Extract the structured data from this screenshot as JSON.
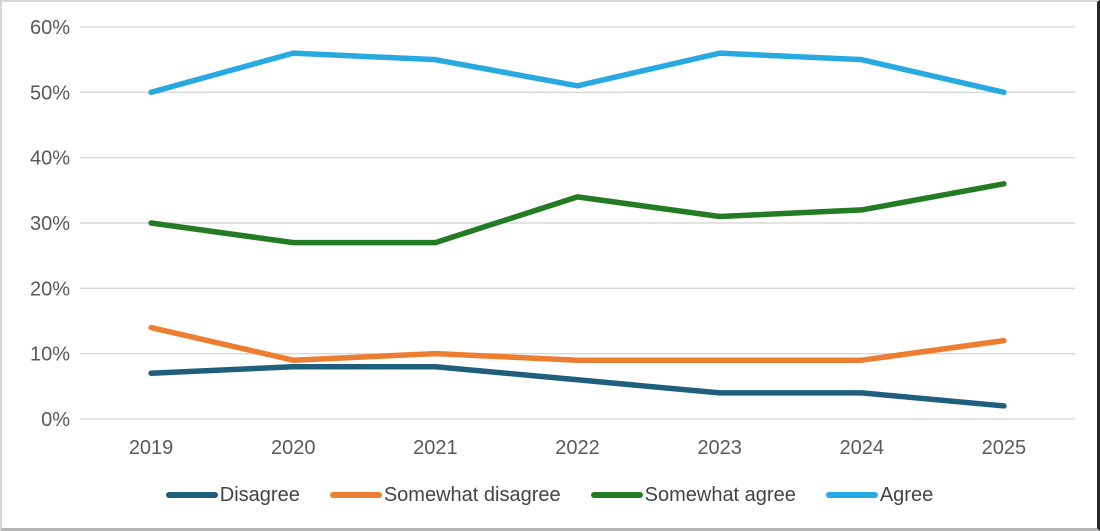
{
  "chart_data": {
    "type": "line",
    "title": "",
    "xlabel": "",
    "ylabel": "",
    "categories": [
      "2019",
      "2020",
      "2021",
      "2022",
      "2023",
      "2024",
      "2025"
    ],
    "series": [
      {
        "name": "Disagree",
        "color": "#205E7E",
        "values": [
          7,
          8,
          8,
          6,
          4,
          4,
          2
        ]
      },
      {
        "name": "Somewhat disagree",
        "color": "#ED7D31",
        "values": [
          14,
          9,
          10,
          9,
          9,
          9,
          12
        ]
      },
      {
        "name": "Somewhat agree",
        "color": "#237B23",
        "values": [
          30,
          27,
          27,
          34,
          31,
          32,
          36
        ]
      },
      {
        "name": "Agree",
        "color": "#29A9E1",
        "values": [
          50,
          56,
          55,
          51,
          56,
          55,
          50
        ]
      }
    ],
    "ylim": [
      0,
      60
    ],
    "ytick_step": 10,
    "ytick_labels": [
      "0%",
      "10%",
      "20%",
      "30%",
      "40%",
      "50%",
      "60%"
    ],
    "grid": true,
    "legend_position": "bottom",
    "colors": {
      "gridline": "#D9D9D9",
      "tick_label": "#595959",
      "legend_label": "#444444",
      "background": "#FFFFFF"
    }
  }
}
